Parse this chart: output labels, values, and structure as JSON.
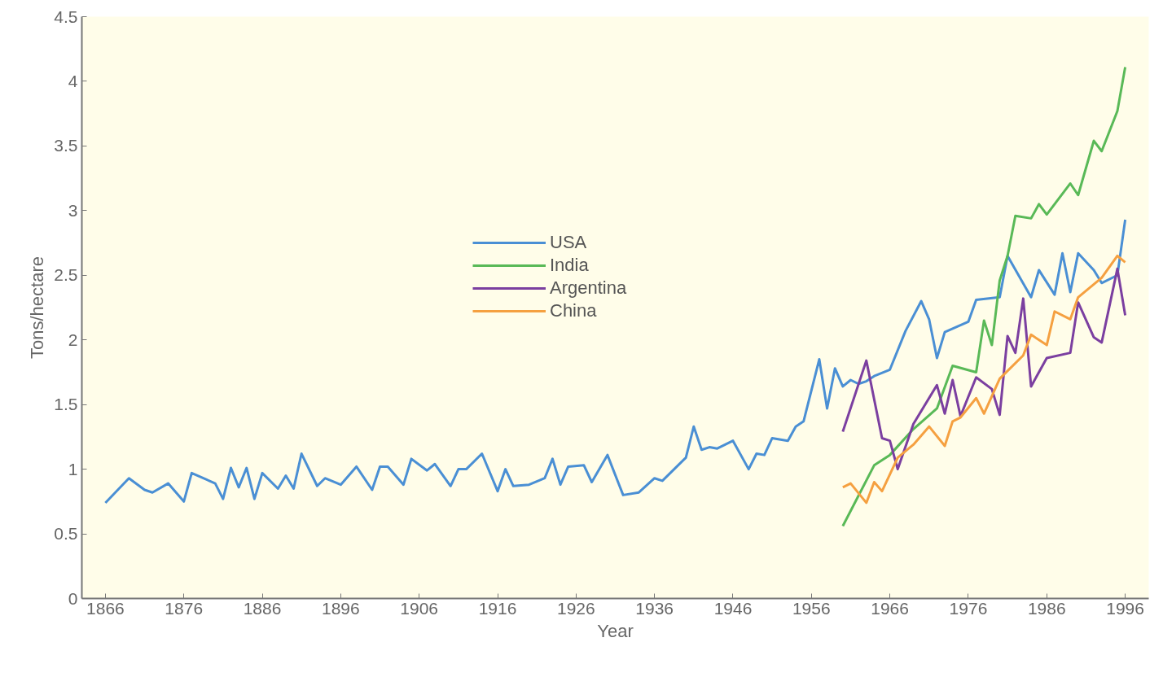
{
  "chart_data": {
    "type": "line",
    "xlabel": "Year",
    "ylabel": "Tons/hectare",
    "xlim": [
      1863,
      1999
    ],
    "ylim": [
      0,
      4.5
    ],
    "xticks": [
      1866,
      1876,
      1886,
      1896,
      1906,
      1916,
      1926,
      1936,
      1946,
      1956,
      1966,
      1976,
      1986,
      1996
    ],
    "yticks": [
      0,
      0.5,
      1,
      1.5,
      2,
      2.5,
      3,
      3.5,
      4,
      4.5
    ],
    "grid": false,
    "legend": "top center",
    "marker": "none",
    "line_style": "solid",
    "series": [
      {
        "name": "USA",
        "color": "#4a8fd4",
        "x": [
          1866,
          1869,
          1871,
          1872,
          1874,
          1876,
          1877,
          1880,
          1881,
          1882,
          1883,
          1884,
          1885,
          1886,
          1888,
          1889,
          1890,
          1891,
          1893,
          1894,
          1896,
          1898,
          1900,
          1901,
          1902,
          1904,
          1905,
          1907,
          1908,
          1910,
          1911,
          1912,
          1914,
          1916,
          1917,
          1918,
          1920,
          1922,
          1923,
          1924,
          1925,
          1927,
          1928,
          1930,
          1932,
          1934,
          1936,
          1937,
          1940,
          1941,
          1942,
          1943,
          1944,
          1946,
          1948,
          1949,
          1950,
          1951,
          1953,
          1954,
          1955,
          1957,
          1958,
          1959,
          1960,
          1961,
          1962,
          1963,
          1964,
          1966,
          1968,
          1970,
          1971,
          1972,
          1973,
          1976,
          1977,
          1980,
          1981,
          1984,
          1985,
          1987,
          1988,
          1989,
          1990,
          1992,
          1993,
          1995,
          1996
        ],
        "values": [
          0.74,
          0.93,
          0.84,
          0.82,
          0.89,
          0.75,
          0.97,
          0.89,
          0.77,
          1.01,
          0.86,
          1.01,
          0.77,
          0.97,
          0.85,
          0.95,
          0.85,
          1.12,
          0.87,
          0.93,
          0.88,
          1.02,
          0.84,
          1.02,
          1.02,
          0.88,
          1.08,
          0.99,
          1.04,
          0.87,
          1.0,
          1.0,
          1.12,
          0.83,
          1.0,
          0.87,
          0.88,
          0.93,
          1.08,
          0.88,
          1.02,
          1.03,
          0.9,
          1.11,
          0.8,
          0.82,
          0.93,
          0.91,
          1.09,
          1.33,
          1.15,
          1.17,
          1.16,
          1.22,
          1.0,
          1.12,
          1.11,
          1.24,
          1.22,
          1.33,
          1.37,
          1.85,
          1.47,
          1.78,
          1.64,
          1.69,
          1.66,
          1.68,
          1.72,
          1.77,
          2.07,
          2.3,
          2.16,
          1.86,
          2.06,
          2.14,
          2.31,
          2.33,
          2.65,
          2.33,
          2.54,
          2.35,
          2.67,
          2.37,
          2.67,
          2.54,
          2.44,
          2.5,
          2.93
        ]
      },
      {
        "name": "India",
        "color": "#59b957",
        "x": [
          1960,
          1964,
          1966,
          1969,
          1972,
          1974,
          1977,
          1978,
          1979,
          1980,
          1981,
          1982,
          1984,
          1985,
          1986,
          1989,
          1990,
          1992,
          1993,
          1995,
          1996
        ],
        "values": [
          0.56,
          1.03,
          1.11,
          1.31,
          1.47,
          1.8,
          1.75,
          2.15,
          1.96,
          2.46,
          2.65,
          2.96,
          2.94,
          3.05,
          2.97,
          3.21,
          3.12,
          3.54,
          3.46,
          3.77,
          4.11
        ]
      },
      {
        "name": "Argentina",
        "color": "#7b3fa0",
        "x": [
          1960,
          1963,
          1965,
          1966,
          1967,
          1969,
          1972,
          1973,
          1974,
          1975,
          1977,
          1979,
          1980,
          1981,
          1982,
          1983,
          1984,
          1986,
          1989,
          1990,
          1992,
          1993,
          1995,
          1996
        ],
        "values": [
          1.29,
          1.84,
          1.24,
          1.22,
          1.0,
          1.35,
          1.65,
          1.43,
          1.69,
          1.41,
          1.71,
          1.62,
          1.42,
          2.03,
          1.9,
          2.32,
          1.64,
          1.86,
          1.9,
          2.29,
          2.02,
          1.98,
          2.55,
          2.19
        ]
      },
      {
        "name": "China",
        "color": "#f5a040",
        "x": [
          1960,
          1961,
          1963,
          1964,
          1965,
          1967,
          1969,
          1971,
          1973,
          1974,
          1975,
          1977,
          1978,
          1980,
          1983,
          1984,
          1986,
          1987,
          1989,
          1990,
          1993,
          1995,
          1996
        ],
        "values": [
          0.86,
          0.89,
          0.74,
          0.9,
          0.83,
          1.09,
          1.19,
          1.33,
          1.18,
          1.37,
          1.4,
          1.55,
          1.43,
          1.7,
          1.88,
          2.04,
          1.96,
          2.22,
          2.16,
          2.33,
          2.48,
          2.65,
          2.6
        ]
      }
    ]
  }
}
